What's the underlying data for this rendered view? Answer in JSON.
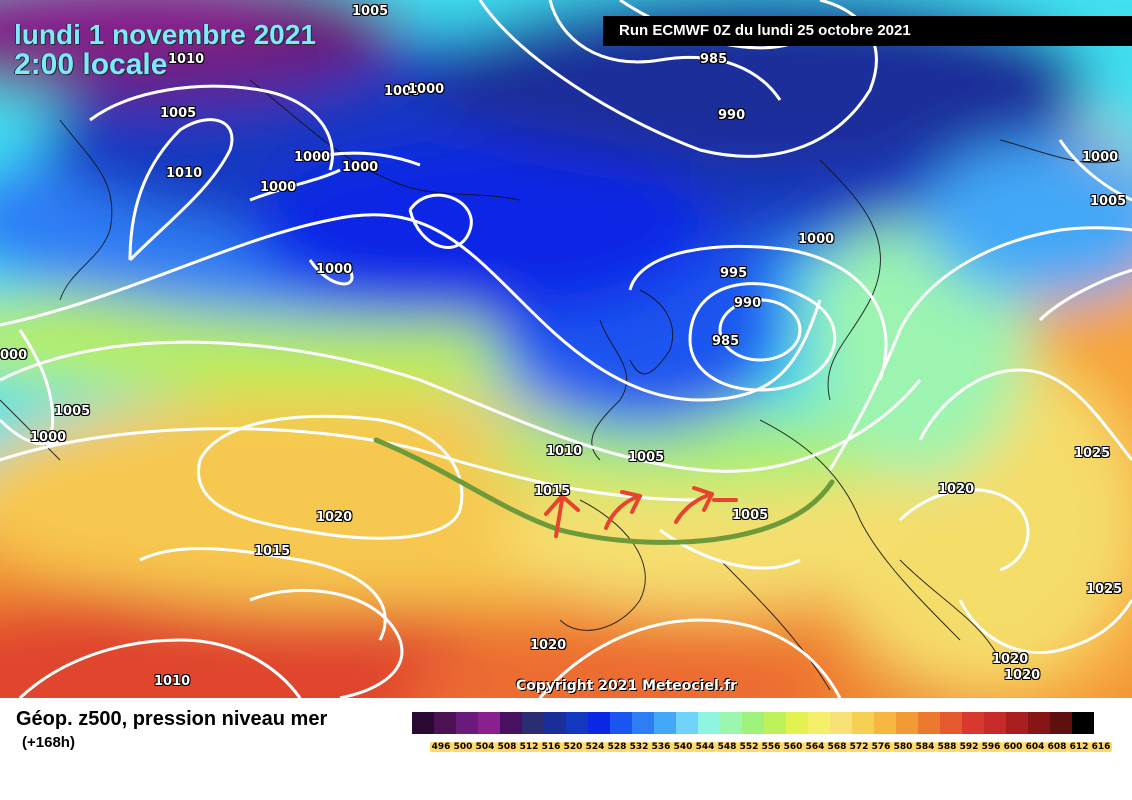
{
  "header": {
    "date_line": "lundi 1 novembre 2021",
    "time_line": "2:00 locale",
    "run_info": "Run ECMWF 0Z du lundi 25 octobre 2021"
  },
  "map": {
    "pressure_labels": [
      {
        "text": "1005",
        "id": "iso-1005-top"
      },
      {
        "text": "1010",
        "id": "iso-1010-nw"
      },
      {
        "text": "1000",
        "id": "iso-1000-greenland-a"
      },
      {
        "text": "1000",
        "id": "iso-1000-greenland-b"
      },
      {
        "text": "1005",
        "id": "iso-1005-greenland"
      },
      {
        "text": "1010",
        "id": "iso-1010-labrador"
      },
      {
        "text": "1000",
        "id": "iso-1000-a"
      },
      {
        "text": "1000",
        "id": "iso-1000-b"
      },
      {
        "text": "1000",
        "id": "iso-1000-c"
      },
      {
        "text": "1000",
        "id": "iso-1000-atlantic"
      },
      {
        "text": "985",
        "id": "iso-985-north"
      },
      {
        "text": "990",
        "id": "iso-990-north"
      },
      {
        "text": "1000",
        "id": "iso-1000-scandinavia"
      },
      {
        "text": "1005",
        "id": "iso-1005-russia"
      },
      {
        "text": "1000",
        "id": "iso-1000-norway"
      },
      {
        "text": "995",
        "id": "iso-995"
      },
      {
        "text": "990",
        "id": "iso-990-low"
      },
      {
        "text": "985",
        "id": "iso-985-low"
      },
      {
        "text": "000",
        "id": "iso-000-west"
      },
      {
        "text": "1005",
        "id": "iso-1005-west"
      },
      {
        "text": "1000",
        "id": "iso-1000-west"
      },
      {
        "text": "1010",
        "id": "iso-1010-biscay"
      },
      {
        "text": "1005",
        "id": "iso-1005-france"
      },
      {
        "text": "1015",
        "id": "iso-1015-iberia"
      },
      {
        "text": "1005",
        "id": "iso-1005-med"
      },
      {
        "text": "1020",
        "id": "iso-1020-atlantic"
      },
      {
        "text": "1015",
        "id": "iso-1015-south"
      },
      {
        "text": "1020",
        "id": "iso-1020-balkans"
      },
      {
        "text": "1025",
        "id": "iso-1025-east"
      },
      {
        "text": "1025",
        "id": "iso-1025-se"
      },
      {
        "text": "1020",
        "id": "iso-1020-africa"
      },
      {
        "text": "1010",
        "id": "iso-1010-sw"
      },
      {
        "text": "1020",
        "id": "iso-1020-se-a"
      },
      {
        "text": "1020",
        "id": "iso-1020-se-b"
      }
    ],
    "copyright": "Copyright 2021 Meteociel.fr"
  },
  "legend": {
    "field_title": "Géop. z500, pression niveau mer",
    "lead_time": "(+168h)",
    "scale_values": [
      "496",
      "500",
      "504",
      "508",
      "512",
      "516",
      "520",
      "524",
      "528",
      "532",
      "536",
      "540",
      "544",
      "548",
      "552",
      "556",
      "560",
      "564",
      "568",
      "572",
      "576",
      "580",
      "584",
      "588",
      "592",
      "596",
      "600",
      "604",
      "608",
      "612",
      "616"
    ],
    "scale_colors": [
      "#2a0a33",
      "#4a1252",
      "#6a1a7a",
      "#8a2090",
      "#4a1060",
      "#2b2d73",
      "#1b2f9a",
      "#1238c0",
      "#0b27e6",
      "#1a55f0",
      "#2e7df5",
      "#43a8f7",
      "#6fd3fb",
      "#8ff5e0",
      "#9af7ad",
      "#9ff27a",
      "#bff25a",
      "#e3f24f",
      "#f5f06a",
      "#f8e176",
      "#f8cf55",
      "#f6b63f",
      "#f29a33",
      "#ec7a2e",
      "#e5592e",
      "#d8382f",
      "#c62a2a",
      "#a81e1e",
      "#861616",
      "#5e0f0f",
      "#000000"
    ]
  }
}
